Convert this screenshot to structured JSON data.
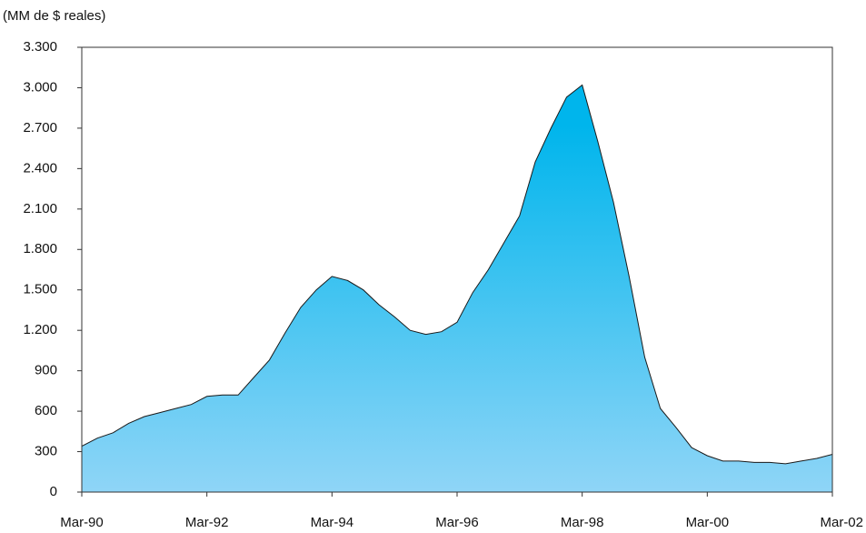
{
  "chart_data": {
    "type": "area",
    "y_label": "(MM de $ reales)",
    "categories": [
      "Mar-90",
      null,
      null,
      null,
      null,
      null,
      null,
      null,
      "Mar-92",
      null,
      null,
      null,
      null,
      null,
      null,
      null,
      "Mar-94",
      null,
      null,
      null,
      null,
      null,
      null,
      null,
      "Mar-96",
      null,
      null,
      null,
      null,
      null,
      null,
      null,
      "Mar-98",
      null,
      null,
      null,
      null,
      null,
      null,
      null,
      "Mar-00",
      null,
      null,
      null,
      null,
      null,
      null,
      null,
      "Mar-02"
    ],
    "values": [
      340,
      400,
      440,
      510,
      560,
      590,
      620,
      650,
      710,
      720,
      720,
      850,
      980,
      1180,
      1370,
      1500,
      1600,
      1570,
      1500,
      1390,
      1300,
      1200,
      1170,
      1190,
      1260,
      1480,
      1650,
      1850,
      2050,
      2450,
      2700,
      2930,
      3020,
      2600,
      2150,
      1600,
      1000,
      620,
      480,
      330,
      270,
      230,
      230,
      220,
      220,
      210,
      230,
      250,
      280
    ],
    "fill_gradient": [
      "#00b5ec",
      "#8fd5f7"
    ],
    "ylim": [
      0,
      3300
    ],
    "yticks": [
      0,
      300,
      600,
      900,
      {
        "value": 1200,
        "label": "1.200"
      },
      {
        "value": 1500,
        "label": "1.500"
      },
      {
        "value": 1800,
        "label": "1.800"
      },
      {
        "value": 2100,
        "label": "2.100"
      },
      {
        "value": 2400,
        "label": "2.400"
      },
      {
        "value": 2700,
        "label": "2.700"
      },
      {
        "value": 3000,
        "label": "3.000"
      },
      {
        "value": 3300,
        "label": "3.300"
      }
    ],
    "grid": false
  }
}
